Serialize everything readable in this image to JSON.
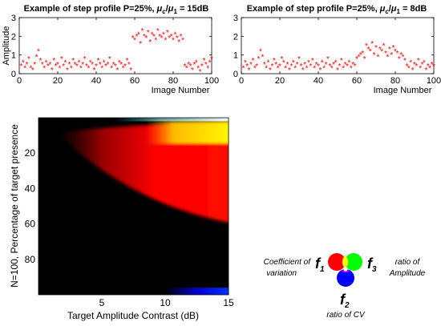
{
  "chart_data": [
    {
      "type": "scatter",
      "title": "Example of step profile P=25%, μc/μ1 = 15dB",
      "title_parts": {
        "prefix": "Example of step profile P=25%, ",
        "mu": "μ",
        "sub_c": "c",
        "slash": "/",
        "sub_1": "1",
        "suffix": " = 15dB"
      },
      "xlabel": "Image Number",
      "ylabel": "Amplitude",
      "xlim": [
        0,
        100
      ],
      "ylim": [
        0,
        3
      ],
      "xticks": [
        "0",
        "20",
        "40",
        "60",
        "80",
        "100"
      ],
      "yticks": [
        "0",
        "1",
        "2",
        "3"
      ],
      "marker": "*",
      "marker_color": "#ff0000",
      "x": [
        1,
        2,
        3,
        4,
        5,
        6,
        7,
        8,
        9,
        10,
        11,
        12,
        13,
        14,
        15,
        16,
        17,
        18,
        19,
        20,
        21,
        22,
        23,
        24,
        25,
        26,
        27,
        28,
        29,
        30,
        31,
        32,
        33,
        34,
        35,
        36,
        37,
        38,
        39,
        40,
        41,
        42,
        43,
        44,
        45,
        46,
        47,
        48,
        49,
        50,
        51,
        52,
        53,
        54,
        55,
        56,
        57,
        58,
        59,
        60,
        61,
        62,
        63,
        64,
        65,
        66,
        67,
        68,
        69,
        70,
        71,
        72,
        73,
        74,
        75,
        76,
        77,
        78,
        79,
        80,
        81,
        82,
        83,
        84,
        85,
        86,
        87,
        88,
        89,
        90,
        91,
        92,
        93,
        94,
        95,
        96,
        97,
        98,
        99,
        100
      ],
      "y": [
        0.4,
        0.6,
        0.3,
        0.5,
        0.8,
        0.3,
        0.2,
        0.5,
        0.9,
        1.2,
        0.7,
        0.5,
        0.3,
        0.6,
        0.4,
        0.5,
        0.2,
        0.7,
        0.4,
        0.5,
        0.3,
        0.8,
        0.4,
        0.6,
        0.2,
        0.5,
        0.3,
        0.7,
        0.5,
        0.4,
        0.6,
        0.3,
        0.5,
        0.8,
        0.4,
        0.3,
        0.6,
        0.5,
        0.2,
        0.4,
        0.7,
        0.5,
        0.3,
        0.6,
        0.4,
        0.5,
        0.8,
        0.3,
        0.5,
        0.4,
        0.2,
        0.6,
        0.5,
        0.3,
        0.4,
        0.7,
        0.5,
        0.2,
        1.9,
        1.8,
        2.0,
        2.1,
        1.6,
        2.3,
        2.0,
        1.9,
        2.2,
        1.7,
        2.1,
        2.0,
        1.8,
        2.3,
        2.0,
        1.9,
        2.1,
        1.8,
        2.2,
        1.9,
        2.0,
        1.8,
        2.1,
        1.9,
        1.7,
        2.0,
        1.8,
        0.4,
        0.3,
        0.5,
        0.4,
        0.2,
        0.5,
        0.6,
        0.3,
        0.1,
        0.4,
        0.7,
        0.5,
        0.3,
        0.6,
        0.8
      ]
    },
    {
      "type": "scatter",
      "title": "Example of step profile P=25%, μc/μ1 = 8dB",
      "title_parts": {
        "prefix": "Example of step profile P=25%, ",
        "mu": "μ",
        "sub_c": "c",
        "slash": "/",
        "sub_1": "1",
        "suffix": " = 8dB"
      },
      "xlabel": "Image Number",
      "ylabel": "",
      "xlim": [
        0,
        100
      ],
      "ylim": [
        0,
        3
      ],
      "xticks": [
        "0",
        "20",
        "40",
        "60",
        "80",
        "100"
      ],
      "yticks": [
        "0",
        "1",
        "2",
        "3"
      ],
      "marker": "*",
      "marker_color": "#ff0000",
      "x": [
        1,
        2,
        3,
        4,
        5,
        6,
        7,
        8,
        9,
        10,
        11,
        12,
        13,
        14,
        15,
        16,
        17,
        18,
        19,
        20,
        21,
        22,
        23,
        24,
        25,
        26,
        27,
        28,
        29,
        30,
        31,
        32,
        33,
        34,
        35,
        36,
        37,
        38,
        39,
        40,
        41,
        42,
        43,
        44,
        45,
        46,
        47,
        48,
        49,
        50,
        51,
        52,
        53,
        54,
        55,
        56,
        57,
        58,
        59,
        60,
        61,
        62,
        63,
        64,
        65,
        66,
        67,
        68,
        69,
        70,
        71,
        72,
        73,
        74,
        75,
        76,
        77,
        78,
        79,
        80,
        81,
        82,
        83,
        84,
        85,
        86,
        87,
        88,
        89,
        90,
        91,
        92,
        93,
        94,
        95,
        96,
        97,
        98,
        99,
        100
      ],
      "y": [
        0.3,
        0.6,
        0.4,
        0.2,
        0.5,
        0.7,
        0.3,
        0.4,
        0.8,
        1.2,
        0.9,
        0.5,
        0.3,
        0.6,
        0.2,
        0.4,
        0.7,
        0.5,
        0.3,
        0.4,
        0.8,
        0.6,
        0.3,
        0.5,
        0.2,
        0.4,
        0.6,
        0.3,
        0.5,
        0.8,
        0.4,
        0.2,
        0.5,
        0.3,
        0.6,
        0.4,
        0.7,
        0.3,
        0.5,
        0.4,
        0.2,
        0.6,
        0.3,
        0.5,
        0.8,
        0.4,
        0.3,
        0.5,
        0.6,
        0.2,
        0.4,
        0.7,
        0.3,
        0.5,
        0.4,
        0.6,
        0.3,
        0.5,
        0.4,
        0.8,
        0.9,
        1.0,
        1.1,
        0.8,
        1.5,
        1.3,
        1.2,
        1.6,
        1.0,
        1.4,
        0.9,
        1.3,
        1.2,
        1.5,
        1.1,
        0.9,
        1.3,
        1.0,
        1.4,
        1.2,
        1.1,
        0.8,
        1.0,
        0.9,
        0.7,
        0.4,
        0.3,
        0.6,
        0.2,
        0.5,
        0.4,
        0.7,
        0.3,
        0.5,
        0.6,
        0.2,
        0.4,
        0.3,
        0.5,
        0.4
      ]
    },
    {
      "type": "heatmap",
      "ylabel": "N=100, Percentage of target presence",
      "xlabel": "Target Amplitude Contrast (dB)",
      "xlim": [
        0,
        15
      ],
      "ylim": [
        0,
        100
      ],
      "y_reversed": true,
      "xticks": [
        "5",
        "10",
        "15"
      ],
      "yticks": [
        "20",
        "40",
        "60",
        "80"
      ],
      "grid": false,
      "colors": {
        "background": "#000000",
        "red": "#ff0000",
        "yellow": "#ffff00",
        "cyan": "#00ffff",
        "blue": "#0000ff"
      },
      "regions": [
        {
          "color": "red",
          "x_from": 1.5,
          "y_top_at_x0": 7,
          "y_top_at_x15": 2,
          "y_bottom_at_x0": 10,
          "y_bottom_at_x15": 60
        },
        {
          "color": "yellow",
          "x_from": 8.5,
          "y_from": 2,
          "y_to": 15
        },
        {
          "color": "cyan",
          "x_from": 6,
          "y_from": 0,
          "y_to": 2
        },
        {
          "color": "blue",
          "x_from": 10,
          "y_from": 96,
          "y_to": 100
        }
      ]
    }
  ],
  "legend": {
    "f1": {
      "symbol": "f",
      "sub": "1",
      "label_line1": "Coefficient of",
      "label_line2": "variation",
      "color": "#ff0000"
    },
    "f2": {
      "symbol": "f",
      "sub": "2",
      "label": "ratio of CV",
      "color": "#0000ff"
    },
    "f3": {
      "symbol": "f",
      "sub": "3",
      "label_line1": "ratio of",
      "label_line2": "Amplitude",
      "color": "#00ff00"
    }
  }
}
